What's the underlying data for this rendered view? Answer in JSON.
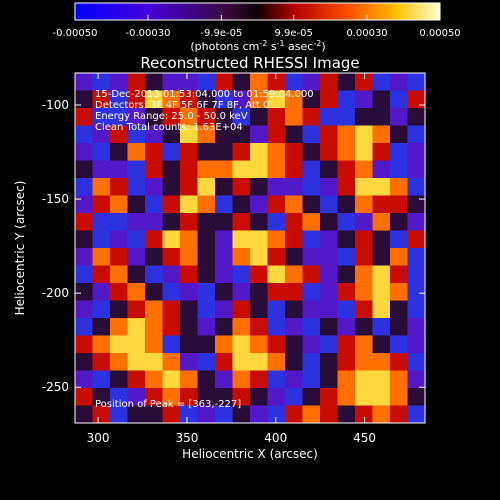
{
  "chart_data": {
    "type": "heatmap",
    "title": "Reconstructed RHESSI Image",
    "xlabel": "Heliocentric X (arcsec)",
    "ylabel": "Heliocentric Y (arcsec)",
    "xlim": [
      287,
      484
    ],
    "ylim": [
      -269,
      -83
    ],
    "x_ticks": [
      300,
      350,
      400,
      450
    ],
    "y_ticks": [
      -100,
      -150,
      -200,
      -250
    ],
    "colorbar": {
      "range": [
        -0.0005,
        0.0005
      ],
      "ticks": [
        "-0.00050",
        "-0.00030",
        "-9.9e-05",
        "9.9e-05",
        "0.00030",
        "0.00050"
      ],
      "tick_values": [
        -0.0005,
        -0.0003,
        -9.9e-05,
        9.9e-05,
        0.0003,
        0.0005
      ],
      "label_parts": [
        "(photons cm",
        "-2",
        " s",
        "-1",
        " asec",
        "-2",
        ")"
      ]
    },
    "annotations": [
      "15-Dec-2013 01:53:04.000 to 01:59:04.000",
      "Detectors: 3F 4F 5F 6F 7F 8F, Att 0",
      "Energy Range: 25.0 - 50.0 keV",
      "Clean    Total counts: 1.63E+04"
    ],
    "peak_label": "Position of Peak = [363,-227]",
    "peak": [
      363,
      -227
    ],
    "grid": false,
    "image_rows": [
      "-.-+:--.+:#+.-+:+.-.",
      ":+.+@#+:.-#@#:+.-:.+",
      "+..-:+#+:.:+#+..::-:",
      ".-+.-:@#::-+:.+#@#:.",
      "-.:#+.+::+@#+:+#@+.-",
      ":--.+:+##@@#+.:+#-.-",
      ".#+.-:+@:+:--.-+@@#.",
      "-+#:.+@#.:-+#:.:#++:",
      "+..--:+::+:.+#:.-#:-",
      ":.-.+@#:-@@#+.-:+:.+",
      "-#+-:+#:-#@+:--.+:#.",
      ".+#:.-+:-.+@#+-:#@+.",
      ":-+#:.-.:-:++.-+#@#.",
      "-.:+#+:.-+:.:--.+@:.",
      ".:#@#+:-:#+.-.:-:.:-",
      "+#@@#.::#@#+:-.+#:.-",
      ":+#@@#-.+@@#:.:+##+.",
      "-.:+#@#:-#+.-.:#@@#-",
      "+:.-+#+::+:-.:+#@@#:",
      ":+.::+.-.:-.+#+:+#+."
    ]
  }
}
